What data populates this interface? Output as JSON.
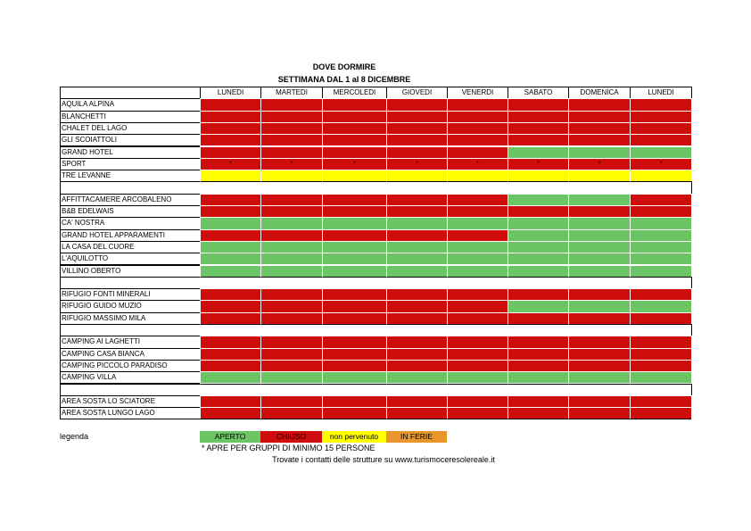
{
  "header": {
    "title": "DOVE DORMIRE",
    "subtitle": "SETTIMANA DAL 1 al 8 DICEMBRE"
  },
  "table": {
    "columns": [
      "LUNEDI",
      "MARTEDI",
      "MERCOLEDI",
      "GIOVEDI",
      "VENERDI",
      "SABATO",
      "DOMENICA",
      "LUNEDI"
    ],
    "rows": [
      {
        "name": "AQUILA ALPINA",
        "status": "CCCCCCCC"
      },
      {
        "name": "BLANCHETTI",
        "status": "CCCCCCCC"
      },
      {
        "name": "CHALET DEL LAGO",
        "status": "CCCCCCCC"
      },
      {
        "name": "GLI SCOIATTOLI",
        "status": "CCCCCCCC"
      },
      {
        "name": "GRAND HOTEL",
        "status": "CCCCCAAA"
      },
      {
        "name": "SPORT",
        "status": "CCCCCCCC",
        "cells": [
          "*",
          "*",
          "*",
          "*",
          "*",
          "*",
          "*",
          "*"
        ]
      },
      {
        "name": "TRE LEVANNE",
        "status": "NNNNNNNN"
      },
      {
        "status": "WWWWWWWW"
      },
      {
        "name": "AFFITTACAMERE ARCOBALENO",
        "status": "CCCCCAAC"
      },
      {
        "name": "B&B EDELWAIS",
        "status": "CCCCCCCC"
      },
      {
        "name": "CA' NOSTRA",
        "status": "AAAAAAAA"
      },
      {
        "name": "GRAND HOTEL APPARAMENTI",
        "status": "CCCCCAAA"
      },
      {
        "name": "LA CASA DEL CUORE",
        "status": "AAAAAAAA"
      },
      {
        "name": "L'AQUILOTTO",
        "status": "AAAAAAAA"
      },
      {
        "name": "VILLINO OBERTO",
        "status": "AAAAAAAA"
      },
      {
        "status": "WWWWWWWW"
      },
      {
        "name": "RIFUGIO FONTI MINERALI",
        "status": "CCCCCCCC"
      },
      {
        "name": "RIFUGIO GUIDO MUZIO",
        "status": "CCCCCAAA"
      },
      {
        "name": "RIFUGIO MASSIMO MILA",
        "status": "CCCCCCCC"
      },
      {
        "status": "WWWWWWWW"
      },
      {
        "name": "CAMPING AI LAGHETTI",
        "status": "CCCCCCCC"
      },
      {
        "name": "CAMPING CASA BIANCA",
        "status": "CCCCCCCC"
      },
      {
        "name": "CAMPING PICCOLO PARADISO",
        "status": "CCCCCCCC"
      },
      {
        "name": "CAMPING VILLA",
        "status": "AAAAAAAA"
      },
      {
        "status": "WWWWWWWW"
      },
      {
        "name": "AREA SOSTA LO SCIATORE",
        "status": "CCCCCCCC"
      },
      {
        "name": "AREA SOSTA LUNGO LAGO",
        "status": "CCCCCCCC"
      }
    ]
  },
  "legend": {
    "title": "legenda",
    "items": [
      {
        "code": "A",
        "label": "APERTO",
        "color": "#6cc564"
      },
      {
        "code": "C",
        "label": "CHIUSO",
        "color": "#d00d0d"
      },
      {
        "code": "N",
        "label": "non pervenuto",
        "color": "#ffff00"
      },
      {
        "code": "F",
        "label": "IN FERIE",
        "color": "#e8952c"
      }
    ]
  },
  "footnote": "* APRE PER GRUPPI DI MINIMO 15 PERSONE",
  "contacts": "Trovate i contatti delle strutture su www.turismoceresolereale.it"
}
